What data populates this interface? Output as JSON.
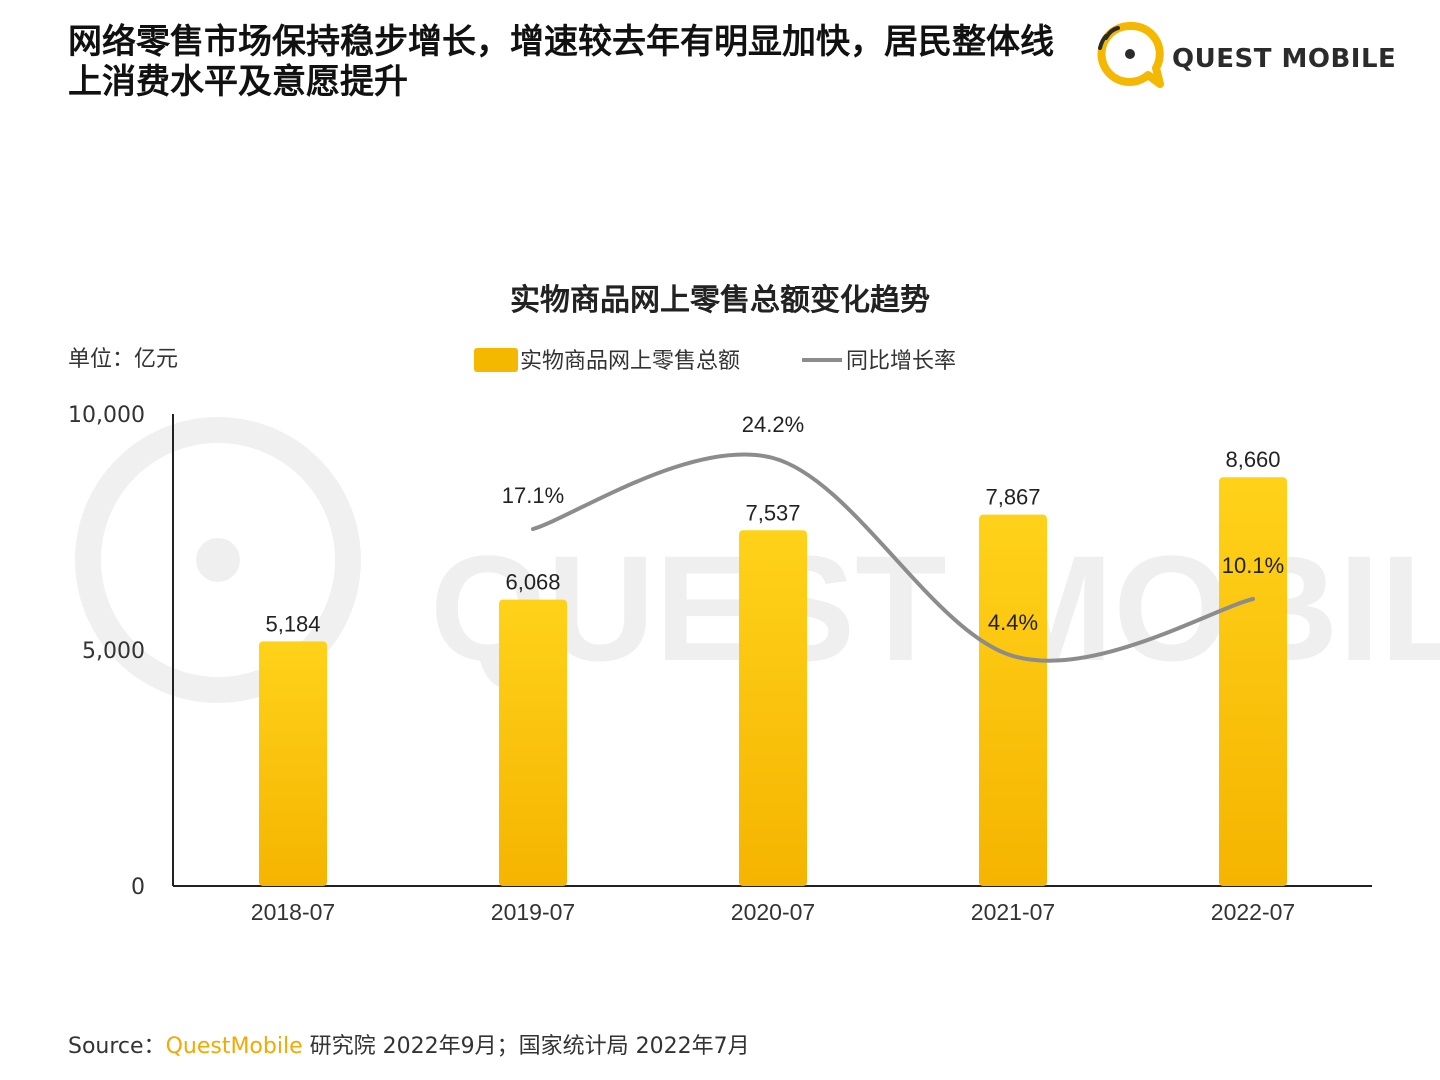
{
  "header": {
    "title": "网络零售市场保持稳步增长，增速较去年有明显加快，居民整体线上消费水平及意愿提升",
    "logo_text": "QUEST MOBILE"
  },
  "colors": {
    "bar": "#f5b800",
    "bar_top": "#ffd21a",
    "line": "#8c8c8c",
    "brand": "#f5a800"
  },
  "chart_data": {
    "type": "bar",
    "title": "实物商品网上零售总额变化趋势",
    "unit_label": "单位：亿元",
    "categories": [
      "2018-07",
      "2019-07",
      "2020-07",
      "2021-07",
      "2022-07"
    ],
    "series": [
      {
        "name": "实物商品网上零售总额",
        "type": "bar",
        "values": [
          5184,
          6068,
          7537,
          7867,
          8660
        ],
        "labels": [
          "5,184",
          "6,068",
          "7,537",
          "7,867",
          "8,660"
        ]
      },
      {
        "name": "同比增长率",
        "type": "line",
        "values": [
          null,
          17.1,
          24.2,
          4.4,
          10.1
        ],
        "labels": [
          "",
          "17.1%",
          "24.2%",
          "4.4%",
          "10.1%"
        ]
      }
    ],
    "y_ticks": [
      0,
      5000,
      10000
    ],
    "y_tick_labels": [
      "0",
      "5,000",
      "10,000"
    ],
    "ylim": [
      0,
      10000
    ],
    "grid": false,
    "legend": "top-center",
    "watermark": "QUEST MOBILE"
  },
  "footer": {
    "source_label": "Source：",
    "source_brand": "QuestMobile",
    "source_rest": " 研究院 2022年9月；国家统计局 2022年7月"
  }
}
